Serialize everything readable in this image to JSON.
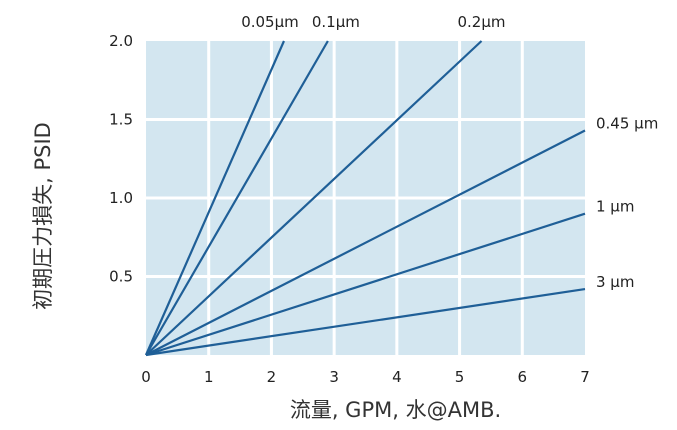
{
  "chart_data": {
    "type": "line",
    "title": "",
    "xlabel": "流量, GPM, 水@AMB.",
    "ylabel": "初期圧力損失, PSID",
    "xlim": [
      0,
      7
    ],
    "ylim": [
      0,
      2.0
    ],
    "x_ticks": [
      "0",
      "1",
      "2",
      "3",
      "4",
      "5",
      "6",
      "7"
    ],
    "y_ticks": [
      "0.5",
      "1.0",
      "1.5",
      "2.0"
    ],
    "grid": true,
    "plot_background": "#d3e6f0",
    "grid_color": "#ffffff",
    "line_color": "#1f5f97",
    "series": [
      {
        "name": "0.05µm",
        "x": [
          0,
          2.2
        ],
        "y": [
          0,
          2.0
        ]
      },
      {
        "name": "0.1µm",
        "x": [
          0,
          2.9
        ],
        "y": [
          0,
          2.0
        ]
      },
      {
        "name": "0.2µm",
        "x": [
          0,
          5.35
        ],
        "y": [
          0,
          2.0
        ]
      },
      {
        "name": "0.45 µm",
        "x": [
          0,
          7
        ],
        "y": [
          0,
          1.43
        ]
      },
      {
        "name": "1 µm",
        "x": [
          0,
          7
        ],
        "y": [
          0,
          0.9
        ]
      },
      {
        "name": "3 µm",
        "x": [
          0,
          7
        ],
        "y": [
          0,
          0.42
        ]
      }
    ]
  }
}
